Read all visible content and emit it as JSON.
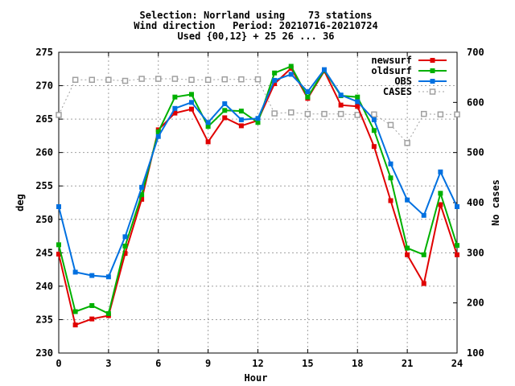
{
  "chart_data": {
    "type": "line",
    "title": [
      "Selection: Norrland using    73 stations",
      "Wind direction   Period: 20210716-20210724",
      "Used {00,12} + 25 26 ... 36"
    ],
    "xlabel": "Hour",
    "ylabel": "deg",
    "y2label": "No cases",
    "xlim": [
      0,
      24
    ],
    "ylim": [
      230,
      275
    ],
    "y2lim": [
      100,
      700
    ],
    "x_ticks": [
      0,
      3,
      6,
      9,
      12,
      15,
      18,
      21,
      24
    ],
    "y_ticks": [
      230,
      235,
      240,
      245,
      250,
      255,
      260,
      265,
      270,
      275
    ],
    "y2_ticks": [
      100,
      200,
      300,
      400,
      500,
      600,
      700
    ],
    "grid": true,
    "legend_position": "top-right",
    "x": [
      0,
      1,
      2,
      3,
      4,
      5,
      6,
      7,
      8,
      9,
      10,
      11,
      12,
      13,
      14,
      15,
      16,
      17,
      18,
      19,
      20,
      21,
      22,
      23,
      24
    ],
    "series": [
      {
        "name": "newsurf",
        "axis": "y",
        "color": "#e00000",
        "marker": "filled-square",
        "values": [
          244.8,
          234.2,
          235.1,
          235.6,
          244.9,
          253.0,
          263.4,
          265.9,
          266.5,
          261.6,
          265.2,
          264.0,
          264.8,
          270.3,
          272.6,
          268.1,
          272.2,
          267.1,
          266.9,
          260.9,
          252.8,
          244.7,
          240.4,
          252.2,
          244.7
        ]
      },
      {
        "name": "oldsurf",
        "axis": "y",
        "color": "#00b000",
        "marker": "filled-square",
        "values": [
          246.2,
          236.2,
          237.1,
          235.9,
          246.0,
          253.7,
          263.1,
          268.3,
          268.7,
          263.9,
          266.3,
          266.2,
          264.5,
          271.9,
          272.9,
          268.3,
          272.3,
          268.5,
          268.3,
          263.3,
          256.2,
          245.7,
          244.7,
          253.9,
          246.1
        ]
      },
      {
        "name": "OBS",
        "axis": "y",
        "color": "#0070e0",
        "marker": "filled-square",
        "values": [
          251.9,
          242.1,
          241.6,
          241.4,
          247.4,
          254.8,
          262.4,
          266.6,
          267.5,
          264.5,
          267.3,
          264.9,
          265.1,
          270.8,
          271.7,
          269.1,
          272.4,
          268.6,
          267.6,
          264.9,
          258.3,
          252.9,
          250.6,
          257.1,
          251.9
        ]
      },
      {
        "name": "CASES",
        "axis": "y2",
        "color": "#a0a0a0",
        "marker": "open-square",
        "dashed": true,
        "values": [
          575,
          645,
          645,
          645,
          643,
          647,
          647,
          647,
          645,
          645,
          646,
          646,
          646,
          578,
          580,
          577,
          577,
          577,
          575,
          576,
          555,
          519,
          577,
          576,
          576
        ]
      }
    ]
  }
}
